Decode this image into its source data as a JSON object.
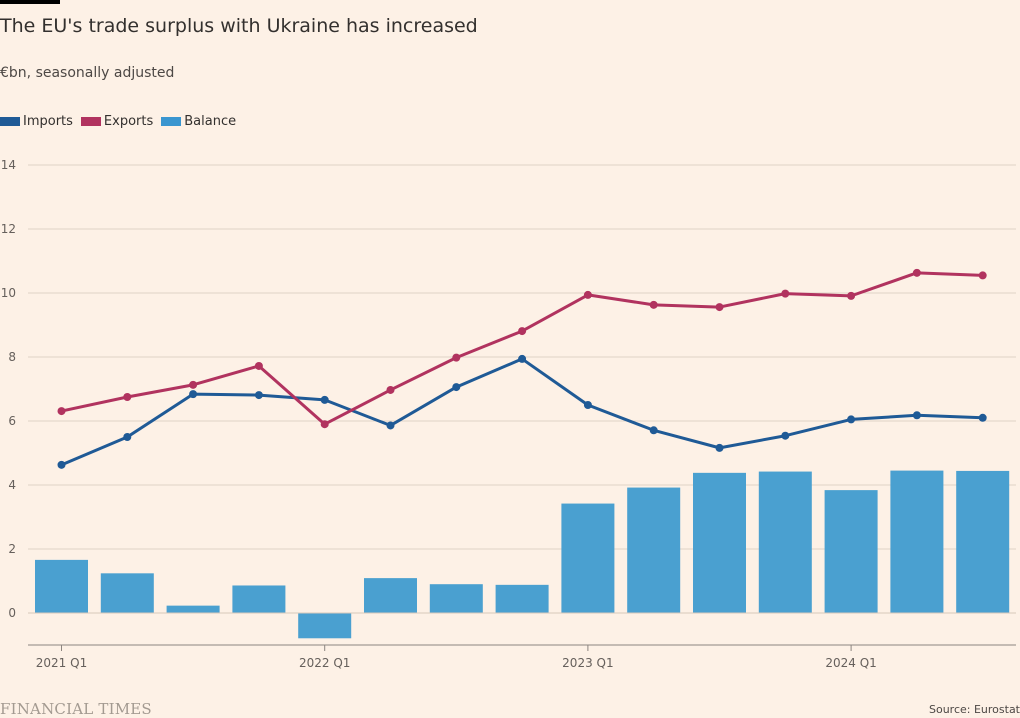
{
  "header": {
    "title": "The EU's trade surplus with Ukraine has increased",
    "subtitle": "€bn, seasonally adjusted"
  },
  "legend": [
    {
      "label": "Imports",
      "color": "#1f5a96"
    },
    {
      "label": "Exports",
      "color": "#b1335f"
    },
    {
      "label": "Balance",
      "color": "#3a96d0"
    }
  ],
  "footer": {
    "brand": "FINANCIAL TIMES",
    "source": "Source: Eurostat"
  },
  "chart_data": {
    "type": "bar+line",
    "title": "The EU's trade surplus with Ukraine has increased",
    "subtitle": "€bn, seasonally adjusted",
    "xlabel": "",
    "ylabel": "€bn",
    "ylim": [
      -1,
      14
    ],
    "yticks": [
      0,
      2,
      4,
      6,
      8,
      10,
      12,
      14
    ],
    "grid": true,
    "legend_position": "top-left",
    "categories": [
      "2021 Q1",
      "2021 Q2",
      "2021 Q3",
      "2021 Q4",
      "2022 Q1",
      "2022 Q2",
      "2022 Q3",
      "2022 Q4",
      "2023 Q1",
      "2023 Q2",
      "2023 Q3",
      "2023 Q4",
      "2024 Q1",
      "2024 Q2",
      "2024 Q3"
    ],
    "xtick_labels": [
      {
        "index": 0,
        "label": "2021 Q1"
      },
      {
        "index": 4,
        "label": "2022 Q1"
      },
      {
        "index": 8,
        "label": "2023 Q1"
      },
      {
        "index": 12,
        "label": "2024 Q1"
      }
    ],
    "series": [
      {
        "name": "Imports",
        "type": "line",
        "color": "#1f5a96",
        "values": [
          4.63,
          5.5,
          6.84,
          6.81,
          6.66,
          5.86,
          7.06,
          7.94,
          6.5,
          5.71,
          5.16,
          5.54,
          6.05,
          6.18,
          6.1
        ]
      },
      {
        "name": "Exports",
        "type": "line",
        "color": "#b1335f",
        "values": [
          6.31,
          6.75,
          7.13,
          7.72,
          5.9,
          6.97,
          7.98,
          8.81,
          9.94,
          9.63,
          9.56,
          9.98,
          9.91,
          10.63,
          10.55
        ]
      },
      {
        "name": "Balance",
        "type": "bar",
        "color": "#4aa0d0",
        "values": [
          1.66,
          1.24,
          0.23,
          0.86,
          -0.79,
          1.09,
          0.9,
          0.88,
          3.42,
          3.92,
          4.38,
          4.42,
          3.84,
          4.45,
          4.44
        ]
      }
    ]
  }
}
